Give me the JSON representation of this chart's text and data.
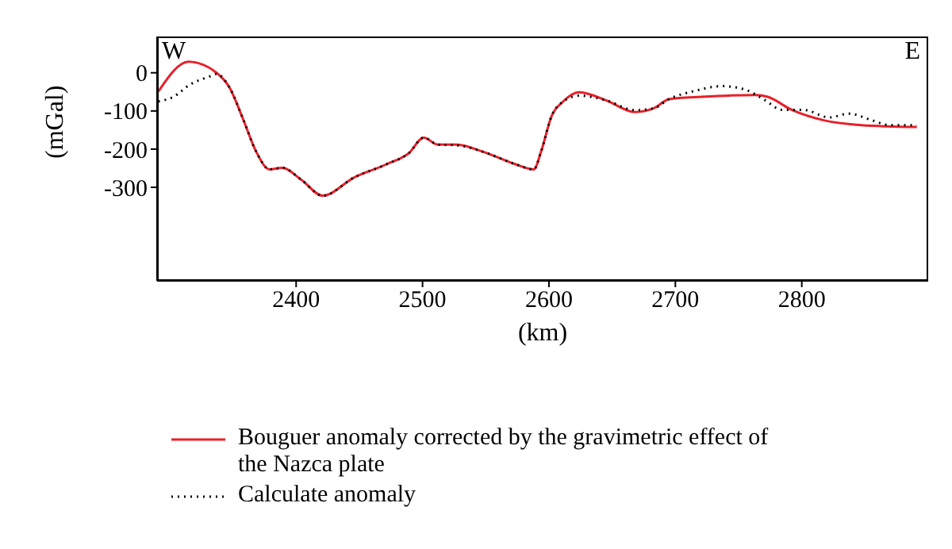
{
  "chart_data": {
    "type": "line",
    "xlabel": "(km)",
    "ylabel": "(mGal)",
    "xlim": [
      2290,
      2900
    ],
    "ylim": [
      -545,
      95
    ],
    "xticks": [
      2400,
      2500,
      2600,
      2700,
      2800
    ],
    "yticks": [
      0,
      -100,
      -200,
      -300
    ],
    "legend": "bottom",
    "marker": "none",
    "annotations": [
      "W",
      "E"
    ],
    "series": [
      {
        "name": "Bouguer anomaly corrected by the gravimetric effect of the Nazca plate",
        "color": "#e8202a",
        "line_style": "solid",
        "x": [
          2291,
          2315,
          2337,
          2347,
          2358,
          2368,
          2379,
          2389,
          2404,
          2421,
          2446,
          2472,
          2489,
          2501,
          2512,
          2527,
          2548,
          2573,
          2588,
          2594,
          2602,
          2611,
          2624,
          2645,
          2668,
          2683,
          2695,
          2721,
          2763,
          2773,
          2792,
          2818,
          2847,
          2891
        ],
        "values": [
          -49,
          29,
          0,
          -37,
          -121,
          -204,
          -253,
          -249,
          -280,
          -322,
          -274,
          -239,
          -211,
          -170,
          -188,
          -188,
          -207,
          -239,
          -253,
          -204,
          -114,
          -76,
          -51,
          -72,
          -103,
          -93,
          -69,
          -63,
          -58,
          -63,
          -97,
          -125,
          -137,
          -142
        ]
      },
      {
        "name": "Calculate anomaly",
        "color": "#000000",
        "line_style": "dotted",
        "x": [
          2291,
          2303,
          2316,
          2333,
          2337,
          2347,
          2358,
          2368,
          2379,
          2389,
          2404,
          2421,
          2446,
          2472,
          2489,
          2501,
          2512,
          2527,
          2548,
          2573,
          2588,
          2594,
          2602,
          2611,
          2624,
          2645,
          2668,
          2683,
          2695,
          2716,
          2737,
          2755,
          2771,
          2784,
          2801,
          2822,
          2837,
          2856,
          2869,
          2891
        ],
        "values": [
          -75,
          -63,
          -31,
          -8,
          -3,
          -37,
          -121,
          -204,
          -253,
          -249,
          -280,
          -322,
          -274,
          -239,
          -211,
          -170,
          -188,
          -190,
          -207,
          -239,
          -253,
          -204,
          -114,
          -76,
          -60,
          -72,
          -98,
          -93,
          -69,
          -47,
          -35,
          -44,
          -72,
          -97,
          -97,
          -117,
          -107,
          -125,
          -137,
          -137
        ]
      }
    ]
  }
}
